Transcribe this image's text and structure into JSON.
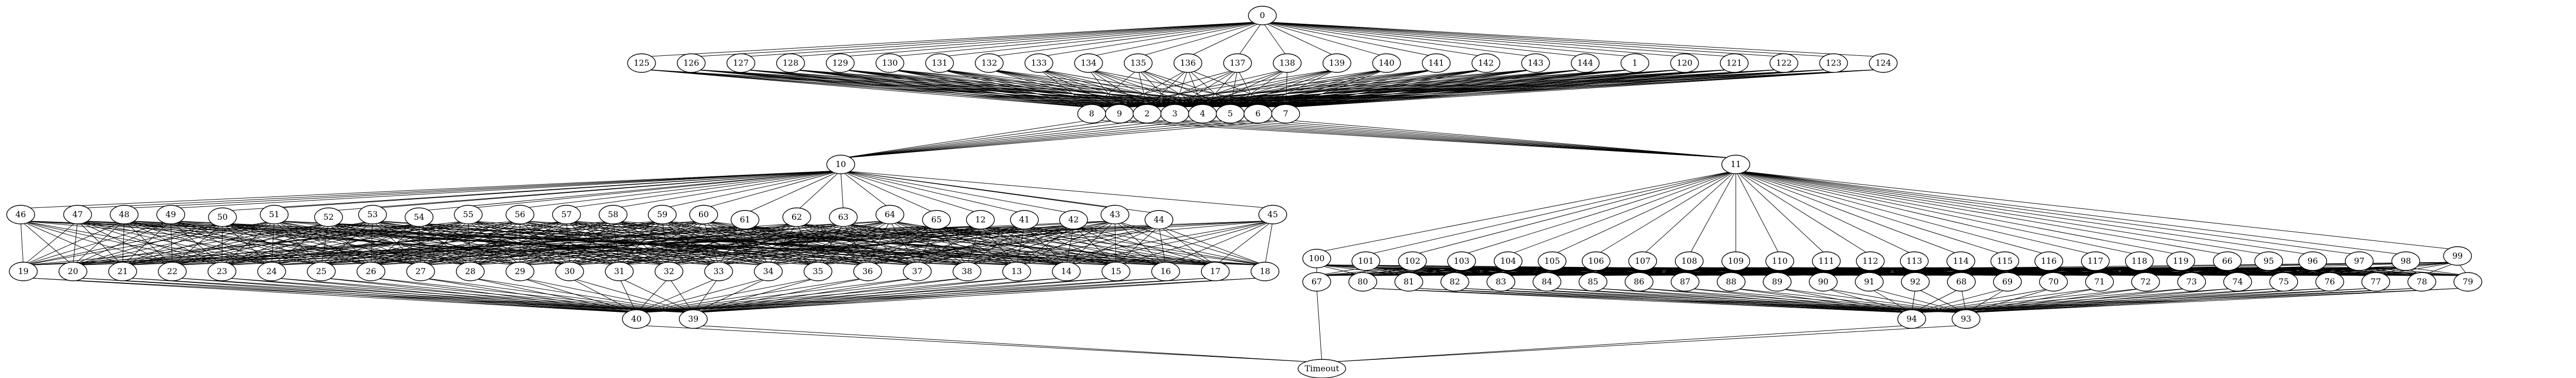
{
  "graph": {
    "colors": {
      "default": "#000000",
      "highlight": "#ffff00",
      "timeout": "#ff0000"
    },
    "nodes": [
      {
        "id": "0"
      },
      {
        "id": "125"
      },
      {
        "id": "126"
      },
      {
        "id": "127"
      },
      {
        "id": "128"
      },
      {
        "id": "129"
      },
      {
        "id": "130"
      },
      {
        "id": "131"
      },
      {
        "id": "132"
      },
      {
        "id": "133"
      },
      {
        "id": "134"
      },
      {
        "id": "135"
      },
      {
        "id": "136"
      },
      {
        "id": "137"
      },
      {
        "id": "138"
      },
      {
        "id": "139"
      },
      {
        "id": "140"
      },
      {
        "id": "141"
      },
      {
        "id": "142"
      },
      {
        "id": "143"
      },
      {
        "id": "144"
      },
      {
        "id": "1"
      },
      {
        "id": "120"
      },
      {
        "id": "121"
      },
      {
        "id": "122"
      },
      {
        "id": "123"
      },
      {
        "id": "124"
      },
      {
        "id": "8"
      },
      {
        "id": "9"
      },
      {
        "id": "2"
      },
      {
        "id": "3"
      },
      {
        "id": "4"
      },
      {
        "id": "5"
      },
      {
        "id": "6"
      },
      {
        "id": "7"
      },
      {
        "id": "10",
        "color": "highlight"
      },
      {
        "id": "11",
        "color": "highlight"
      },
      {
        "id": "46"
      },
      {
        "id": "47"
      },
      {
        "id": "48"
      },
      {
        "id": "49"
      },
      {
        "id": "50"
      },
      {
        "id": "51"
      },
      {
        "id": "52"
      },
      {
        "id": "53"
      },
      {
        "id": "54"
      },
      {
        "id": "55"
      },
      {
        "id": "56"
      },
      {
        "id": "57"
      },
      {
        "id": "58"
      },
      {
        "id": "59"
      },
      {
        "id": "60"
      },
      {
        "id": "61"
      },
      {
        "id": "62"
      },
      {
        "id": "63"
      },
      {
        "id": "64"
      },
      {
        "id": "65"
      },
      {
        "id": "12"
      },
      {
        "id": "41"
      },
      {
        "id": "42"
      },
      {
        "id": "43"
      },
      {
        "id": "44"
      },
      {
        "id": "45"
      },
      {
        "id": "19"
      },
      {
        "id": "20"
      },
      {
        "id": "21"
      },
      {
        "id": "22"
      },
      {
        "id": "23"
      },
      {
        "id": "24"
      },
      {
        "id": "25"
      },
      {
        "id": "26"
      },
      {
        "id": "27"
      },
      {
        "id": "28"
      },
      {
        "id": "29"
      },
      {
        "id": "30"
      },
      {
        "id": "31"
      },
      {
        "id": "32"
      },
      {
        "id": "33"
      },
      {
        "id": "34"
      },
      {
        "id": "35"
      },
      {
        "id": "36"
      },
      {
        "id": "37"
      },
      {
        "id": "38"
      },
      {
        "id": "13"
      },
      {
        "id": "14"
      },
      {
        "id": "15"
      },
      {
        "id": "16"
      },
      {
        "id": "17"
      },
      {
        "id": "18"
      },
      {
        "id": "40"
      },
      {
        "id": "39"
      },
      {
        "id": "100"
      },
      {
        "id": "101"
      },
      {
        "id": "102"
      },
      {
        "id": "103"
      },
      {
        "id": "104"
      },
      {
        "id": "105"
      },
      {
        "id": "106"
      },
      {
        "id": "107"
      },
      {
        "id": "108"
      },
      {
        "id": "109"
      },
      {
        "id": "110"
      },
      {
        "id": "111"
      },
      {
        "id": "112"
      },
      {
        "id": "113"
      },
      {
        "id": "114"
      },
      {
        "id": "115"
      },
      {
        "id": "116"
      },
      {
        "id": "117"
      },
      {
        "id": "118"
      },
      {
        "id": "119"
      },
      {
        "id": "66"
      },
      {
        "id": "95"
      },
      {
        "id": "96"
      },
      {
        "id": "97"
      },
      {
        "id": "98"
      },
      {
        "id": "99"
      },
      {
        "id": "67"
      },
      {
        "id": "80"
      },
      {
        "id": "81"
      },
      {
        "id": "82"
      },
      {
        "id": "83"
      },
      {
        "id": "84"
      },
      {
        "id": "85"
      },
      {
        "id": "86"
      },
      {
        "id": "87"
      },
      {
        "id": "88"
      },
      {
        "id": "89"
      },
      {
        "id": "90"
      },
      {
        "id": "91"
      },
      {
        "id": "92"
      },
      {
        "id": "68"
      },
      {
        "id": "69"
      },
      {
        "id": "70"
      },
      {
        "id": "71"
      },
      {
        "id": "72"
      },
      {
        "id": "73"
      },
      {
        "id": "74"
      },
      {
        "id": "75"
      },
      {
        "id": "76"
      },
      {
        "id": "77"
      },
      {
        "id": "78"
      },
      {
        "id": "79"
      },
      {
        "id": "94"
      },
      {
        "id": "93"
      },
      {
        "id": "Timeout",
        "color": "timeout"
      }
    ]
  }
}
